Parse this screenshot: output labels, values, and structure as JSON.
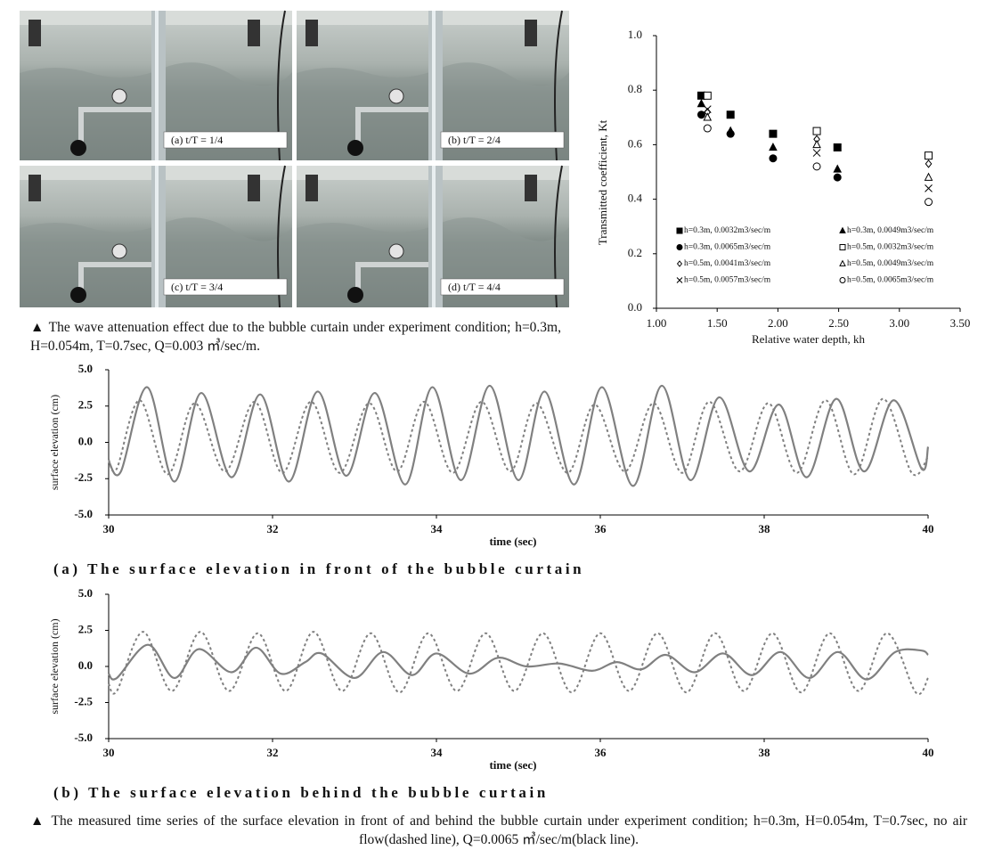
{
  "photos": {
    "panels": [
      "(a) t/T = 1/4",
      "(b) t/T = 2/4",
      "(c) t/T = 3/4",
      "(d) t/T = 4/4"
    ]
  },
  "figure1_caption": "▲ The wave attenuation effect due to the bubble curtain under experiment condition; h=0.3m, H=0.054m, T=0.7sec, Q=0.003 ㎥/sec/m.",
  "chart_data": [
    {
      "type": "scatter",
      "xlabel": "Relative water depth, kh",
      "ylabel": "Transmitted coefficient, Kt",
      "xlim": [
        1,
        3.5
      ],
      "xticks": [
        {
          "value": 1,
          "label": "1.00"
        },
        {
          "value": 1.5,
          "label": "1.50"
        },
        {
          "value": 2,
          "label": "2.00"
        },
        {
          "value": 2.5,
          "label": "2.50"
        },
        {
          "value": 3,
          "label": "3.00"
        },
        {
          "value": 3.5,
          "label": "3.50"
        }
      ],
      "ylim": [
        0,
        1
      ],
      "yticks": [
        {
          "value": 0,
          "label": "0.0"
        },
        0.2,
        0.4,
        0.6,
        0.8,
        {
          "value": 1,
          "label": "1.0"
        }
      ],
      "series": [
        {
          "name": "h=0.3m, 0.0032m3/sec/m",
          "marker": "square",
          "filled": true,
          "color": "#000000",
          "x": [
            1.37,
            1.61,
            1.96,
            2.49
          ],
          "values": [
            0.78,
            0.71,
            0.64,
            0.59
          ]
        },
        {
          "name": "h=0.3m, 0.0049m3/sec/m",
          "marker": "triangle",
          "filled": true,
          "color": "#000000",
          "x": [
            1.37,
            1.61,
            1.96,
            2.49
          ],
          "values": [
            0.75,
            0.65,
            0.59,
            0.51
          ]
        },
        {
          "name": "h=0.3m, 0.0065m3/sec/m",
          "marker": "circle",
          "filled": true,
          "color": "#000000",
          "x": [
            1.37,
            1.61,
            1.96,
            2.49
          ],
          "values": [
            0.71,
            0.64,
            0.55,
            0.48
          ]
        },
        {
          "name": "h=0.5m, 0.0032m3/sec/m",
          "marker": "square",
          "filled": false,
          "color": "#000000",
          "x": [
            1.42,
            2.32,
            3.24
          ],
          "values": [
            0.78,
            0.65,
            0.56
          ]
        },
        {
          "name": "h=0.5m, 0.0041m3/sec/m",
          "marker": "diamond",
          "filled": false,
          "color": "#000000",
          "x": [
            1.42,
            2.32,
            3.24
          ],
          "values": [
            0.72,
            0.62,
            0.53
          ]
        },
        {
          "name": "h=0.5m, 0.0049m3/sec/m",
          "marker": "triangle",
          "filled": false,
          "color": "#000000",
          "x": [
            1.42,
            2.32,
            3.24
          ],
          "values": [
            0.7,
            0.6,
            0.48
          ]
        },
        {
          "name": "h=0.5m, 0.0057m3/sec/m",
          "marker": "x",
          "filled": false,
          "color": "#000000",
          "x": [
            1.42,
            2.32,
            3.24
          ],
          "values": [
            0.73,
            0.57,
            0.44
          ]
        },
        {
          "name": "h=0.5m, 0.0065m3/sec/m",
          "marker": "circle",
          "filled": false,
          "color": "#000000",
          "x": [
            1.42,
            2.32,
            3.24
          ],
          "values": [
            0.66,
            0.52,
            0.39
          ]
        }
      ]
    },
    {
      "type": "line",
      "title": "(a) The surface elevation in front of the bubble curtain",
      "xlabel": "time (sec)",
      "ylabel": "surface elevation (cm)",
      "xlim": [
        30,
        40
      ],
      "xticks": [
        30,
        32,
        34,
        36,
        38,
        40
      ],
      "ylim": [
        -5,
        5
      ],
      "yticks": [
        {
          "value": 5,
          "label": "5.0"
        },
        2.5,
        {
          "value": 0,
          "label": "0.0"
        },
        -2.5,
        {
          "value": -5,
          "label": "-5.0"
        }
      ],
      "series": [
        {
          "dashed": true,
          "color": "#808080",
          "x": [
            30,
            30.1,
            30.38,
            30.72,
            31.05,
            31.42,
            31.78,
            32.12,
            32.47,
            32.82,
            33.18,
            33.52,
            33.85,
            34.2,
            34.55,
            34.9,
            35.22,
            35.6,
            35.93,
            36.3,
            36.65,
            37.0,
            37.33,
            37.7,
            38.05,
            38.4,
            38.75,
            39.1,
            39.45,
            39.8,
            40
          ],
          "values": [
            -1.2,
            -1.8,
            2.9,
            -2.2,
            2.7,
            -2.0,
            2.8,
            -2.1,
            2.8,
            -2.1,
            2.7,
            -2.0,
            2.8,
            -2.1,
            2.8,
            -2.0,
            2.7,
            -2.1,
            2.6,
            -2.0,
            2.7,
            -2.1,
            2.8,
            -2.0,
            2.7,
            -2.1,
            2.9,
            -2.2,
            3.0,
            -2.1,
            -1.0
          ]
        },
        {
          "dashed": false,
          "color": "#808080",
          "x": [
            30,
            30.15,
            30.47,
            30.8,
            31.13,
            31.5,
            31.85,
            32.2,
            32.55,
            32.9,
            33.25,
            33.62,
            33.95,
            34.3,
            34.65,
            35.0,
            35.32,
            35.68,
            36.02,
            36.4,
            36.75,
            37.1,
            37.45,
            37.82,
            38.18,
            38.52,
            38.88,
            39.22,
            39.58,
            39.92,
            40
          ],
          "values": [
            -1.3,
            -2.0,
            3.8,
            -2.7,
            3.4,
            -2.4,
            3.3,
            -2.7,
            3.5,
            -2.3,
            3.4,
            -2.9,
            3.8,
            -2.6,
            3.9,
            -2.6,
            3.5,
            -2.9,
            3.8,
            -3.0,
            3.9,
            -2.6,
            3.1,
            -2.0,
            2.6,
            -2.4,
            3.0,
            -2.0,
            2.9,
            -1.8,
            -0.3
          ]
        }
      ]
    },
    {
      "type": "line",
      "title": "(b) The surface elevation behind the bubble curtain",
      "xlabel": "time (sec)",
      "ylabel": "surface elevation (cm)",
      "xlim": [
        30,
        40
      ],
      "xticks": [
        30,
        32,
        34,
        36,
        38,
        40
      ],
      "ylim": [
        -5,
        5
      ],
      "yticks": [
        {
          "value": 5,
          "label": "5.0"
        },
        2.5,
        {
          "value": 0,
          "label": "0.0"
        },
        -2.5,
        {
          "value": -5,
          "label": "-5.0"
        }
      ],
      "series": [
        {
          "dashed": true,
          "color": "#808080",
          "x": [
            30,
            30.1,
            30.42,
            30.77,
            31.12,
            31.47,
            31.82,
            32.16,
            32.5,
            32.85,
            33.2,
            33.55,
            33.9,
            34.25,
            34.6,
            34.95,
            35.3,
            35.65,
            36.0,
            36.35,
            36.7,
            37.05,
            37.4,
            37.75,
            38.1,
            38.45,
            38.8,
            39.15,
            39.5,
            39.85,
            40
          ],
          "values": [
            -1.2,
            -1.7,
            2.4,
            -1.7,
            2.4,
            -1.7,
            2.3,
            -1.7,
            2.4,
            -1.7,
            2.3,
            -1.8,
            2.3,
            -1.7,
            2.3,
            -1.7,
            2.3,
            -1.8,
            2.3,
            -1.7,
            2.3,
            -1.8,
            2.3,
            -1.7,
            2.3,
            -1.8,
            2.3,
            -1.7,
            2.3,
            -1.8,
            -0.8
          ]
        },
        {
          "dashed": false,
          "color": "#808080",
          "x": [
            30,
            30.1,
            30.48,
            30.8,
            31.1,
            31.5,
            31.8,
            32.1,
            32.4,
            32.6,
            33.0,
            33.35,
            33.7,
            34.0,
            34.4,
            34.75,
            35.1,
            35.5,
            35.9,
            36.2,
            36.5,
            36.8,
            37.15,
            37.5,
            37.85,
            38.2,
            38.55,
            38.9,
            39.25,
            39.6,
            39.92,
            40
          ],
          "values": [
            -0.5,
            -0.8,
            1.5,
            -0.8,
            1.2,
            -0.4,
            1.3,
            -0.5,
            0.3,
            0.9,
            -0.8,
            1.0,
            -0.6,
            0.9,
            -0.5,
            0.6,
            0.0,
            0.2,
            -0.3,
            0.3,
            -0.2,
            0.8,
            -0.4,
            0.9,
            -0.6,
            1.0,
            -0.8,
            1.0,
            -0.9,
            1.0,
            1.1,
            0.8
          ]
        }
      ]
    }
  ],
  "figure2_caption": "▲ The measured time series of the surface elevation in front of and behind the bubble curtain under experiment condition; h=0.3m, H=0.054m, T=0.7sec, no air flow(dashed line), Q=0.0065 ㎥/sec/m(black line)."
}
